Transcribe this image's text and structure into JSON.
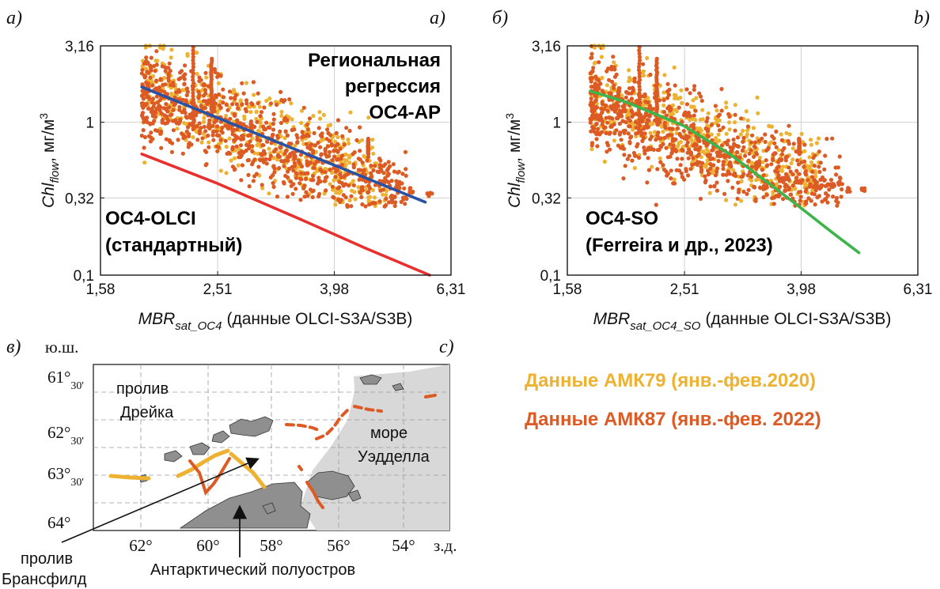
{
  "colors": {
    "amk79": "#EDB232",
    "amk87": "#DC5A24",
    "regional": "#2A52A4",
    "standard": "#E8302E",
    "so": "#3CB54A"
  },
  "panel_letters": {
    "a_ru": "а)",
    "a_en": "a)",
    "b_ru": "б)",
    "b_en": "b)",
    "c_ru": "в)",
    "c_en": "c)"
  },
  "chart_data": [
    {
      "type": "scatter",
      "panel": "а)",
      "xlabel_main": "MBR",
      "xlabel_sub": "sat_OC4",
      "xlabel_suffix": "(данные OLCI-S3A/S3B)",
      "ylabel_main": "Chl",
      "ylabel_sub": "flow",
      "ylabel_suffix": ", мг/м",
      "ylabel_sup": "3",
      "x_scale": "log",
      "y_scale": "log",
      "xlim": [
        1.58,
        6.31
      ],
      "ylim": [
        0.1,
        3.16
      ],
      "x_ticks": [
        "1,58",
        "2,51",
        "3,98",
        "6,31"
      ],
      "y_ticks": [
        "3,16",
        "1",
        "0,32",
        "0,1"
      ],
      "grid": true,
      "annotations": {
        "regional": [
          "Региональная",
          "регрессия",
          "OC4-AP"
        ],
        "standard": [
          "OC4-OLCI",
          "(стандартный)"
        ]
      },
      "series": [
        {
          "name": "OC4-AP",
          "type": "line",
          "x": [
            1.86,
            5.7
          ],
          "y": [
            1.7,
            0.3
          ]
        },
        {
          "name": "OC4-OLCI",
          "type": "line",
          "x": [
            1.86,
            2.5,
            3.5,
            4.5,
            5.8
          ],
          "y": [
            0.62,
            0.4,
            0.23,
            0.15,
            0.1
          ]
        }
      ]
    },
    {
      "type": "scatter",
      "panel": "б)",
      "xlabel_main": "MBR",
      "xlabel_sub": "sat_OC4_SO",
      "xlabel_suffix": "(данные OLCI-S3A/S3B)",
      "ylabel_main": "Chl",
      "ylabel_sub": "flow",
      "ylabel_suffix": ", мг/м",
      "ylabel_sup": "3",
      "x_scale": "log",
      "y_scale": "log",
      "xlim": [
        1.58,
        6.31
      ],
      "ylim": [
        0.1,
        3.16
      ],
      "x_ticks": [
        "1,58",
        "2,51",
        "3,98",
        "6,31"
      ],
      "y_ticks": [
        "3,16",
        "1",
        "0,32",
        "0,1"
      ],
      "grid": true,
      "annotations": {
        "so": [
          "OC4-SO",
          "(Ferreira и др., 2023)"
        ]
      },
      "series": [
        {
          "name": "OC4-SO",
          "type": "line",
          "x": [
            1.73,
            2.0,
            2.5,
            3.0,
            3.5,
            4.0,
            4.5,
            5.0
          ],
          "y": [
            1.6,
            1.35,
            0.95,
            0.62,
            0.4,
            0.27,
            0.19,
            0.14
          ]
        }
      ]
    }
  ],
  "legend": {
    "amk79": "Данные АМК79 (янв.-фев.2020)",
    "amk87": "Данные АМК87 (янв.-фев. 2022)"
  },
  "map": {
    "lat_header": "ю.ш.",
    "lon_header": "з.д.",
    "lat_labels": [
      {
        "deg": "61°",
        "min": "30'"
      },
      {
        "deg": "62°",
        "min": "30'"
      },
      {
        "deg": "63°",
        "min": "30'"
      },
      {
        "deg": "64°",
        "min": ""
      }
    ],
    "lon_labels": [
      "62°",
      "60°",
      "58°",
      "56°",
      "54°"
    ],
    "place_drake": [
      "пролив",
      "Дрейка"
    ],
    "place_weddell": [
      "море",
      "Уэдделла"
    ],
    "place_bransfield": [
      "пролив",
      "Брансфилд"
    ],
    "place_peninsula": "Антарктический полуостров"
  }
}
